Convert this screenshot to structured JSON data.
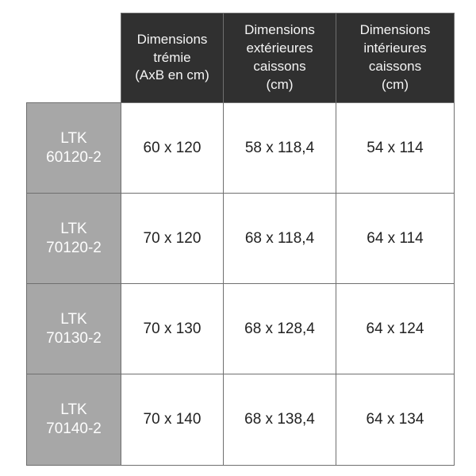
{
  "chart_data": {
    "type": "table",
    "columns": [
      "Dimensions\ntrémie\n(AxB en cm)",
      "Dimensions\nextérieures\ncaissons\n(cm)",
      "Dimensions\nintérieures\ncaissons\n(cm)"
    ],
    "rows": [
      {
        "label": "LTK\n60120-2",
        "values": [
          "60 x 120",
          "58 x 118,4",
          "54 x 114"
        ]
      },
      {
        "label": "LTK\n70120-2",
        "values": [
          "70 x 120",
          "68 x 118,4",
          "64 x 114"
        ]
      },
      {
        "label": "LTK\n70130-2",
        "values": [
          "70 x 130",
          "68 x 128,4",
          "64 x 124"
        ]
      },
      {
        "label": "LTK\n70140-2",
        "values": [
          "70 x 140",
          "68 x 138,4",
          "64 x 134"
        ]
      }
    ],
    "colors": {
      "header_bg": "#303030",
      "header_text": "#f5f5f5",
      "row_label_bg": "#a7a7a7",
      "row_label_text": "#fdfdfd",
      "cell_bg": "#ffffff",
      "cell_text": "#222222",
      "grid_border": "#6f6f6f",
      "page_bg": "#ffffff"
    }
  }
}
